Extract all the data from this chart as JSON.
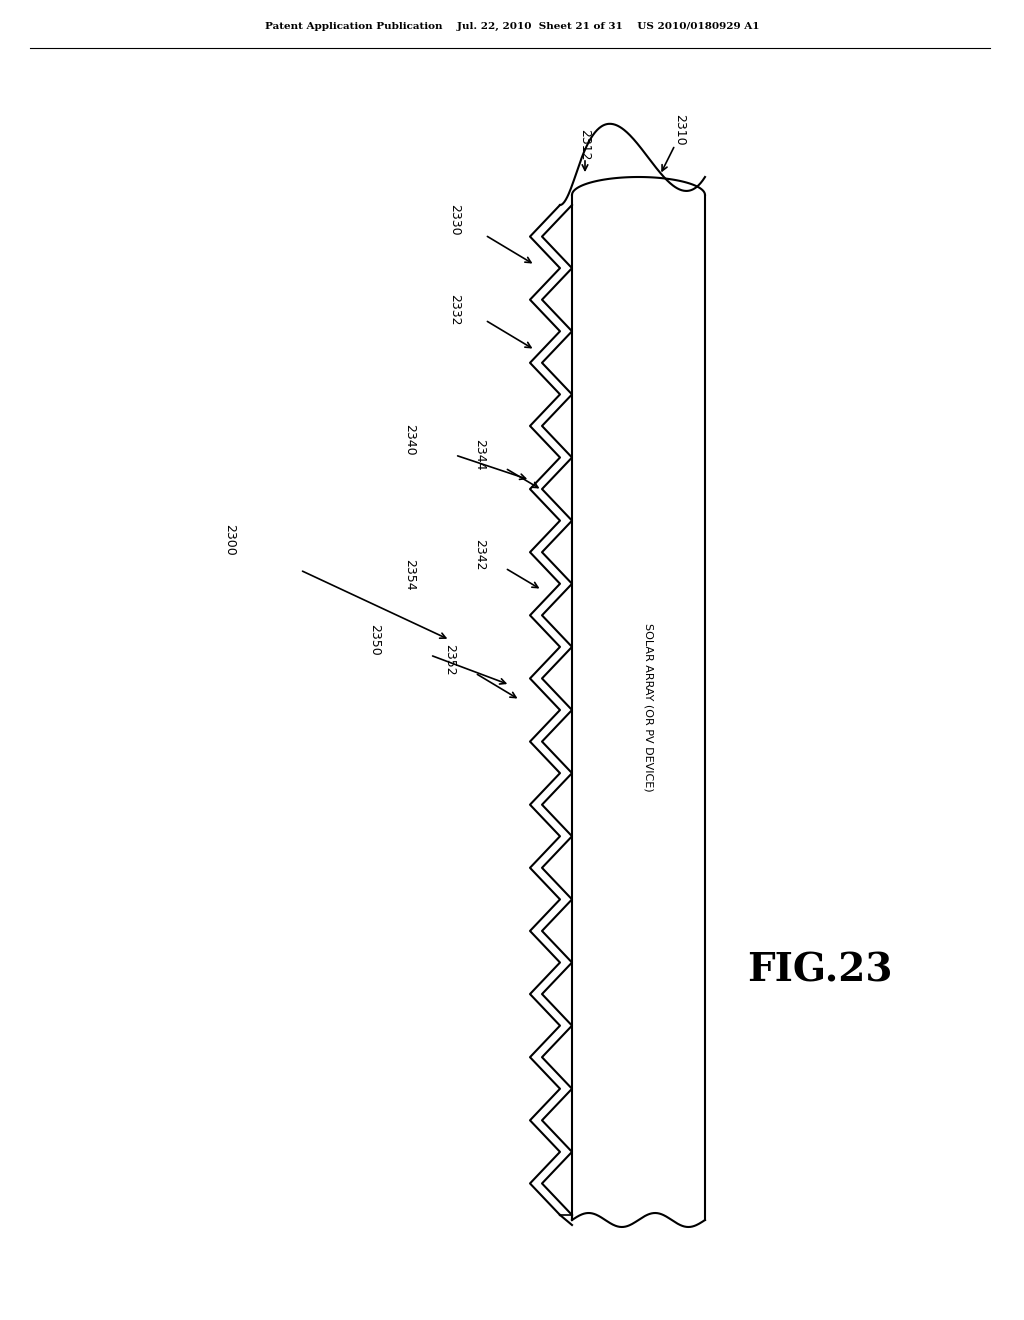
{
  "bg_color": "#ffffff",
  "line_color": "#000000",
  "header_text": "Patent Application Publication    Jul. 22, 2010  Sheet 21 of 31    US 2010/0180929 A1",
  "fig_label": "FIG.23",
  "label_2300": "2300",
  "label_2310": "2310",
  "label_2312": "2312",
  "label_2330": "2330",
  "label_2332": "2332",
  "label_2340": "2340",
  "label_2342": "2342",
  "label_2344": "2344",
  "label_2350": "2350",
  "label_2352": "2352",
  "label_2354": "2354",
  "solar_label": "SOLAR ARRAY (OR PV DEVICE)"
}
